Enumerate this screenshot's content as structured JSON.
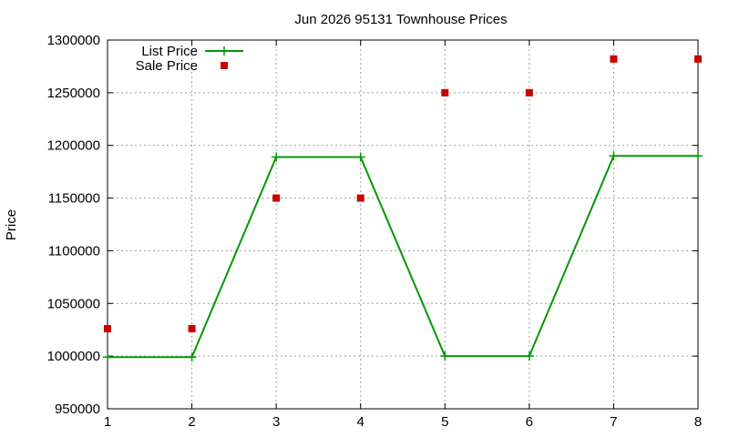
{
  "chart_data": {
    "type": "line",
    "title": "Jun 2026 95131 Townhouse Prices",
    "xlabel": "",
    "ylabel": "Price",
    "xlim": [
      1,
      8
    ],
    "ylim": [
      950000,
      1300000
    ],
    "x_ticks": [
      "1",
      "2",
      "3",
      "4",
      "5",
      "6",
      "7",
      "8"
    ],
    "y_ticks": [
      "950000",
      "1000000",
      "1050000",
      "1100000",
      "1150000",
      "1200000",
      "1250000",
      "1300000"
    ],
    "grid": true,
    "legend_position": "top-left",
    "series": [
      {
        "name": "List Price",
        "style": "line-with-plus-markers",
        "color": "#009900",
        "x": [
          1,
          2,
          3,
          4,
          5,
          6,
          7,
          8
        ],
        "y": [
          999000,
          999000,
          1189000,
          1189000,
          1000000,
          1000000,
          1190000,
          1190000
        ]
      },
      {
        "name": "Sale Price",
        "style": "square-markers",
        "color": "#cc0000",
        "x": [
          1,
          2,
          3,
          4,
          5,
          6,
          7,
          8
        ],
        "y": [
          1026000,
          1026000,
          1150000,
          1150000,
          1250000,
          1250000,
          1282000,
          1282000
        ]
      }
    ]
  }
}
